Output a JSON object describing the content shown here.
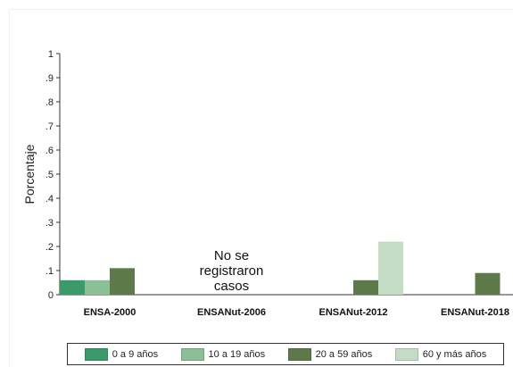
{
  "chart_data": {
    "type": "bar",
    "title": "",
    "xlabel": "",
    "ylabel": "Porcentaje",
    "ylim": [
      0,
      1
    ],
    "yticks": [
      "0",
      ".1",
      ".2",
      ".3",
      ".4",
      ".5",
      ".6",
      ".7",
      ".8",
      ".9",
      "1"
    ],
    "categories": [
      "ENSA-2000",
      "ENSANut-2006",
      "ENSANut-2012",
      "ENSANut-2018"
    ],
    "series": [
      {
        "name": "0 a 9 años",
        "color": "#3a9a6a",
        "values": [
          0.06,
          null,
          null,
          null
        ]
      },
      {
        "name": "10 a 19 años",
        "color": "#8cbf97",
        "values": [
          0.06,
          null,
          null,
          null
        ]
      },
      {
        "name": "20 a 59 años",
        "color": "#5e7a4a",
        "values": [
          0.11,
          null,
          0.06,
          0.09
        ]
      },
      {
        "name": "60 y más años",
        "color": "#c3dcc3",
        "values": [
          null,
          null,
          0.22,
          null
        ]
      }
    ],
    "annotations": [
      {
        "category": "ENSANut-2006",
        "lines": [
          "No se",
          "registraron",
          "casos"
        ]
      }
    ],
    "grid": false,
    "legend_position": "bottom"
  }
}
